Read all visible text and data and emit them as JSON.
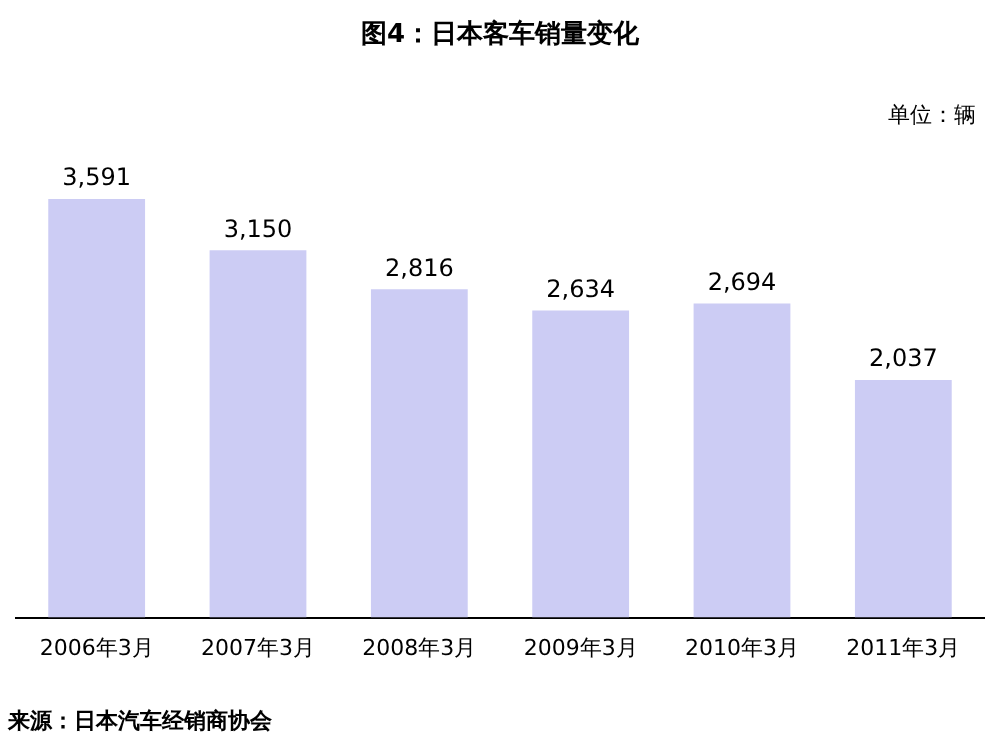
{
  "chart_data": {
    "type": "bar",
    "title": "图4：日本客车销量变化",
    "categories": [
      "2006年3月",
      "2007年3月",
      "2008年3月",
      "2009年3月",
      "2010年3月",
      "2011年3月"
    ],
    "values": [
      3591,
      3150,
      2816,
      2634,
      2694,
      2037
    ],
    "value_labels": [
      "3,591",
      "3,150",
      "2,816",
      "2,634",
      "2,694",
      "2,037"
    ],
    "color": "#ccccf4",
    "grid": false,
    "legend": false,
    "annotations": [
      "单位：辆",
      "来源：日本汽车经销商协会"
    ]
  }
}
